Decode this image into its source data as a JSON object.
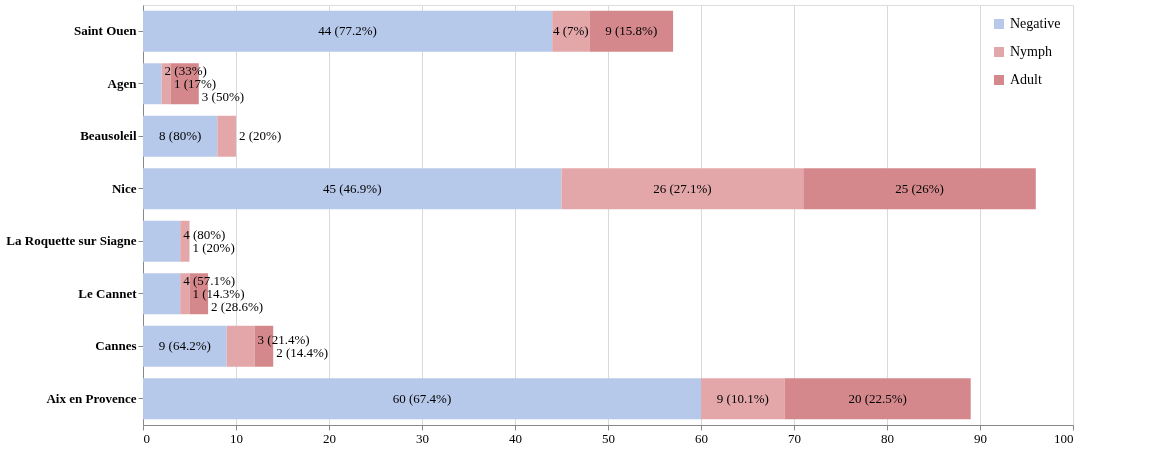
{
  "chart_data": {
    "type": "bar",
    "orientation": "horizontal",
    "stacked": true,
    "categories": [
      "Saint Ouen",
      "Agen",
      "Beausoleil",
      "Nice",
      "La Roquette sur Siagne",
      "Le Cannet",
      "Cannes",
      "Aix en Provence"
    ],
    "series": [
      {
        "name": "Negative",
        "color": "#b7c9eb",
        "values": [
          44,
          2,
          8,
          45,
          4,
          4,
          9,
          60
        ],
        "value_labels": [
          "44 (77.2%)",
          "2 (33%)",
          "8 (80%)",
          "45 (46.9%)",
          "4 (80%)",
          "4 (57.1%)",
          "9 (64.2%)",
          "60 (67.4%)"
        ]
      },
      {
        "name": "Nymph",
        "color": "#e3a7aa",
        "values": [
          4,
          1,
          2,
          26,
          1,
          1,
          3,
          9
        ],
        "value_labels": [
          "4 (7%)",
          "1 (17%)",
          "2 (20%)",
          "26 (27.1%)",
          "1 (20%)",
          "1 (14.3%)",
          "3 (21.4%)",
          "9 (10.1%)"
        ]
      },
      {
        "name": "Adult",
        "color": "#d4888c",
        "values": [
          9,
          3,
          null,
          25,
          null,
          2,
          2,
          20
        ],
        "value_labels": [
          "9 (15.8%)",
          "3 (50%)",
          null,
          "25 (26%)",
          null,
          "2 (28.6%)",
          "2 (14.4%)",
          "20 (22.5%)"
        ]
      }
    ],
    "xlim": [
      0,
      100
    ],
    "xticks": [
      0,
      10,
      20,
      30,
      40,
      50,
      60,
      70,
      80,
      90,
      100
    ],
    "grid": "x",
    "legend": "top right"
  }
}
